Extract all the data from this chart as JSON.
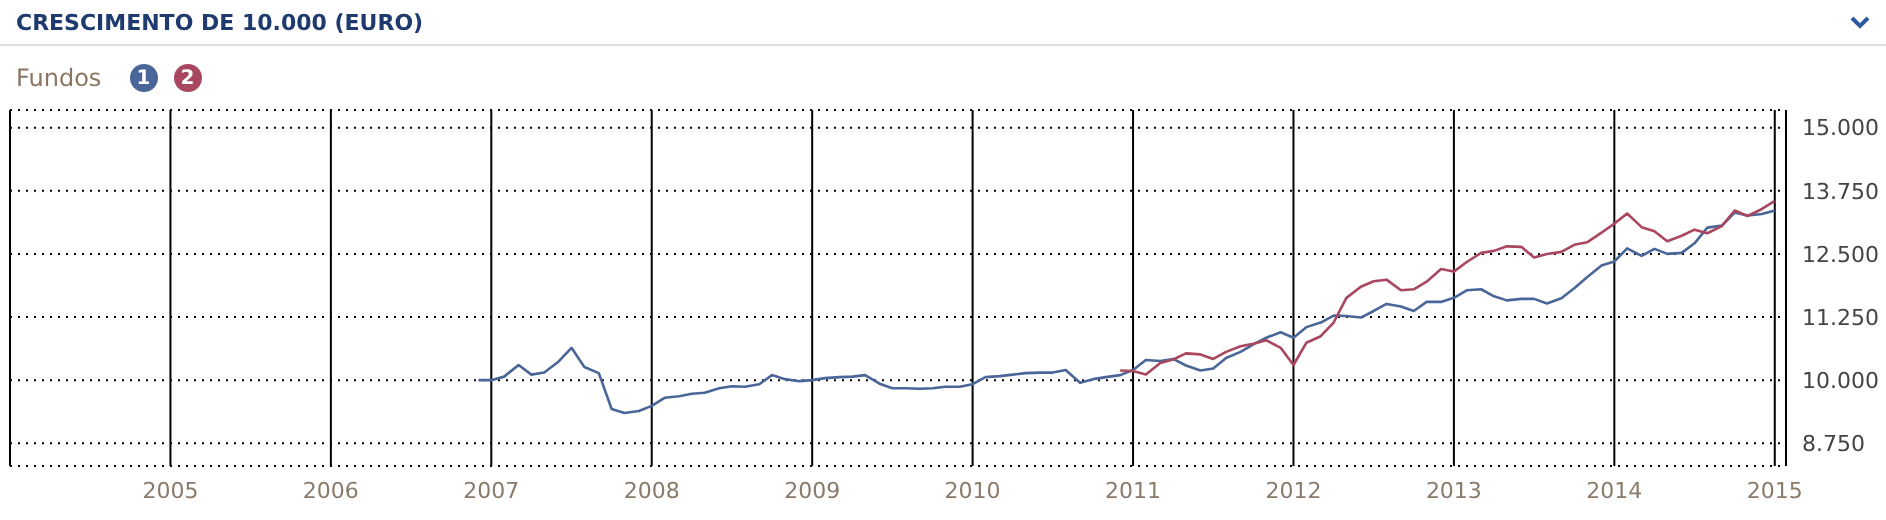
{
  "chart_data": {
    "type": "line",
    "title": "CRESCIMENTO DE 10.000 (EURO)",
    "legend_title": "Fundos",
    "legend": "top left",
    "grid": true,
    "marker": "none",
    "line_style": "solid",
    "xlim": [
      2004.0,
      2015.07
    ],
    "xticks": [
      2005,
      2006,
      2007,
      2008,
      2009,
      2010,
      2011,
      2012,
      2013,
      2014,
      2015
    ],
    "ylim": [
      8300,
      15350
    ],
    "yticks": [
      {
        "value": 8750,
        "label": "8.750"
      },
      {
        "value": 10000,
        "label": "10.000"
      },
      {
        "value": 11250,
        "label": "11.250"
      },
      {
        "value": 12500,
        "label": "12.500"
      },
      {
        "value": 13750,
        "label": "13.750"
      },
      {
        "value": 15000,
        "label": "15.000"
      }
    ],
    "series": [
      {
        "name": "1",
        "color": "#4a6699",
        "x": [
          2006.92,
          2007.0,
          2007.08,
          2007.17,
          2007.25,
          2007.33,
          2007.42,
          2007.5,
          2007.58,
          2007.67,
          2007.75,
          2007.83,
          2007.92,
          2008.0,
          2008.08,
          2008.17,
          2008.25,
          2008.33,
          2008.42,
          2008.5,
          2008.58,
          2008.67,
          2008.75,
          2008.83,
          2008.92,
          2009.0,
          2009.08,
          2009.17,
          2009.25,
          2009.33,
          2009.42,
          2009.5,
          2009.58,
          2009.67,
          2009.75,
          2009.83,
          2009.92,
          2010.0,
          2010.08,
          2010.17,
          2010.25,
          2010.33,
          2010.42,
          2010.5,
          2010.58,
          2010.67,
          2010.75,
          2010.83,
          2010.92,
          2011.0,
          2011.08,
          2011.17,
          2011.25,
          2011.33,
          2011.42,
          2011.5,
          2011.58,
          2011.67,
          2011.75,
          2011.83,
          2011.92,
          2012.0,
          2012.08,
          2012.17,
          2012.25,
          2012.33,
          2012.42,
          2012.5,
          2012.58,
          2012.67,
          2012.75,
          2012.83,
          2012.92,
          2013.0,
          2013.08,
          2013.17,
          2013.25,
          2013.33,
          2013.42,
          2013.5,
          2013.58,
          2013.67,
          2013.75,
          2013.83,
          2013.92,
          2014.0,
          2014.08,
          2014.17,
          2014.25,
          2014.33,
          2014.42,
          2014.5,
          2014.58,
          2014.67,
          2014.75,
          2014.83,
          2014.92,
          2015.0
        ],
        "values": [
          10000,
          10000,
          10070,
          10300,
          10110,
          10150,
          10370,
          10640,
          10260,
          10140,
          9430,
          9350,
          9390,
          9490,
          9650,
          9680,
          9730,
          9750,
          9840,
          9880,
          9870,
          9920,
          10100,
          10020,
          9980,
          10000,
          10040,
          10060,
          10070,
          10100,
          9930,
          9840,
          9840,
          9830,
          9840,
          9870,
          9870,
          9920,
          10060,
          10080,
          10110,
          10140,
          10150,
          10150,
          10200,
          9950,
          10020,
          10060,
          10100,
          10200,
          10400,
          10380,
          10420,
          10290,
          10190,
          10230,
          10440,
          10560,
          10710,
          10840,
          10950,
          10840,
          11050,
          11140,
          11280,
          11270,
          11240,
          11370,
          11510,
          11460,
          11370,
          11550,
          11550,
          11630,
          11780,
          11800,
          11660,
          11580,
          11610,
          11610,
          11520,
          11620,
          11820,
          12040,
          12270,
          12350,
          12610,
          12460,
          12600,
          12500,
          12520,
          12710,
          13020,
          13060,
          13320,
          13260,
          13290,
          13360
        ]
      },
      {
        "name": "2",
        "color": "#a8475f",
        "x": [
          2010.92,
          2011.0,
          2011.08,
          2011.17,
          2011.25,
          2011.33,
          2011.42,
          2011.5,
          2011.58,
          2011.67,
          2011.75,
          2011.83,
          2011.92,
          2012.0,
          2012.08,
          2012.17,
          2012.25,
          2012.33,
          2012.42,
          2012.5,
          2012.58,
          2012.67,
          2012.75,
          2012.83,
          2012.92,
          2013.0,
          2013.08,
          2013.17,
          2013.25,
          2013.33,
          2013.42,
          2013.5,
          2013.58,
          2013.67,
          2013.75,
          2013.83,
          2013.92,
          2014.0,
          2014.08,
          2014.17,
          2014.25,
          2014.33,
          2014.42,
          2014.5,
          2014.58,
          2014.67,
          2014.75,
          2014.83,
          2014.92,
          2015.0
        ],
        "values": [
          10190,
          10180,
          10110,
          10340,
          10410,
          10530,
          10510,
          10420,
          10560,
          10670,
          10720,
          10790,
          10640,
          10300,
          10740,
          10870,
          11140,
          11630,
          11850,
          11960,
          11990,
          11780,
          11800,
          11950,
          12200,
          12150,
          12340,
          12520,
          12560,
          12650,
          12640,
          12430,
          12500,
          12540,
          12680,
          12730,
          12920,
          13100,
          13300,
          13030,
          12950,
          12750,
          12860,
          12980,
          12910,
          13050,
          13360,
          13250,
          13390,
          13550
        ]
      }
    ]
  }
}
